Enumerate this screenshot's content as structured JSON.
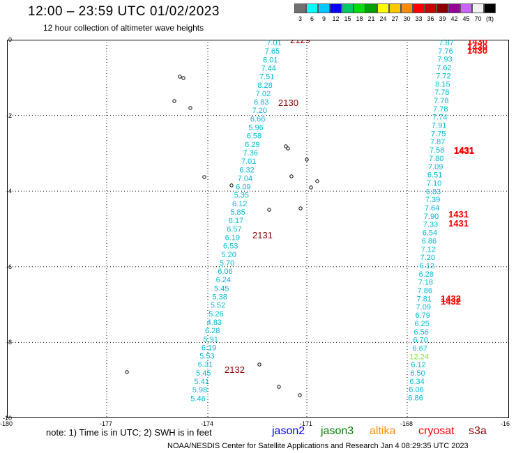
{
  "header": {
    "title": "12:00 – 23:59 UTC 01/02/2023",
    "subtitle": "12 hour collection of altimeter wave heights"
  },
  "colorbar": {
    "colors": [
      "#707070",
      "#00ffff",
      "#00c8ff",
      "#0000ff",
      "#00c864",
      "#00e000",
      "#00a000",
      "#ffff00",
      "#ffc800",
      "#ff8c00",
      "#ff0000",
      "#c80000",
      "#8c0000",
      "#960096",
      "#c864ff",
      "#f0f0f0",
      "#000000"
    ],
    "labels": [
      "3",
      "6",
      "9",
      "12",
      "15",
      "18",
      "21",
      "24",
      "27",
      "30",
      "33",
      "36",
      "39",
      "42",
      "45",
      "70",
      "(ft)"
    ]
  },
  "axes": {
    "y_ticks": [
      "0",
      "-2",
      "-4",
      "-6",
      "-8",
      "-10"
    ],
    "x_ticks": [
      "-180",
      "-177",
      "-174",
      "-171",
      "-168",
      "-16"
    ]
  },
  "tracks": {
    "west": {
      "values": [
        "7.01",
        "7.65",
        "8.01",
        "7.44",
        "7.51",
        "8.28",
        "7.02",
        "6.83",
        "7.20",
        "6.66",
        "5.96",
        "6.58",
        "6.29",
        "7.36",
        "7.01",
        "6.32",
        "7.04",
        "6.09",
        "5.35",
        "6.12",
        "5.85",
        "6.17",
        "6.57",
        "6.19",
        "6.53",
        "5.20",
        "5.70",
        "6.06",
        "6.24",
        "5.45",
        "5.38",
        "5.52",
        "5.26",
        "4.83",
        "6.28",
        "5.91",
        "6.19",
        "5.53",
        "6.31",
        "5.45",
        "5.41",
        "5.98",
        "5.46"
      ],
      "times": [
        "2129",
        "2130",
        "2131",
        "2132"
      ]
    },
    "east": {
      "values": [
        "7.87",
        "7.76",
        "7.93",
        "7.62",
        "7.72",
        "8.15",
        "7.78",
        "7.78",
        "7.78",
        "7.74",
        "7.91",
        "7.75",
        "7.87",
        "7.58",
        "7.80",
        "7.09",
        "6.51",
        "7.10",
        "6.83",
        "7.39",
        "7.64",
        "7.90",
        "7.33",
        "6.54",
        "6.86",
        "7.12",
        "7.20",
        "6.12",
        "6.28",
        "7.18",
        "7.86",
        "7.81",
        "7.09",
        "6.79",
        "6.25",
        "6.56",
        "6.70",
        "6.67",
        "12.24",
        "6.12",
        "6.50",
        "6.34",
        "6.06",
        "6.86"
      ],
      "times": [
        "1430",
        "1430",
        "1430",
        "1431",
        "1431",
        "1431",
        "1431",
        "1432",
        "1432"
      ]
    }
  },
  "legend": {
    "note": "note: 1) Time is in UTC; 2) SWH is in feet",
    "satellites": [
      {
        "name": "jason2",
        "color": "#0000ff"
      },
      {
        "name": "jason3",
        "color": "#008000"
      },
      {
        "name": "altika",
        "color": "#ff8c00"
      },
      {
        "name": "cryosat",
        "color": "#ff0000"
      },
      {
        "name": "s3a",
        "color": "#8b0000"
      }
    ]
  },
  "footer": "NOAA/NESDIS Center for Satellite Applications and Research   Jan  4 08:29:35 UTC 2023"
}
